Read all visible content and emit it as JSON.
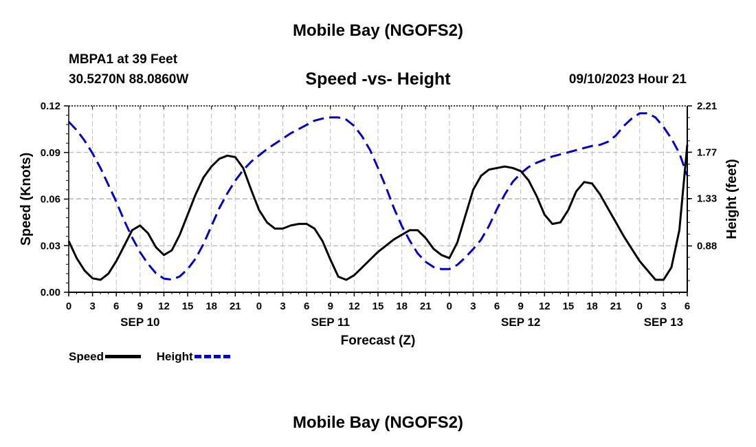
{
  "header": {
    "title": "Mobile Bay (NGOFS2)",
    "station": "MBPA1 at 39 Feet",
    "coordinates": "30.5270N  88.0860W",
    "subtitle": "Speed -vs- Height",
    "datetime": "09/10/2023 Hour 21"
  },
  "footer": {
    "title": "Mobile Bay (NGOFS2)"
  },
  "legend": {
    "speed_label": "Speed",
    "height_label": "Height"
  },
  "chart_data": {
    "type": "line",
    "title": "Speed -vs- Height",
    "xlabel": "Forecast (Z)",
    "ylabel": "Speed (Knots)",
    "y2label": "Height (feet)",
    "x_unit": "hours",
    "x_tick_labels": [
      "0",
      "3",
      "6",
      "9",
      "12",
      "15",
      "18",
      "21",
      "0",
      "3",
      "6",
      "9",
      "12",
      "15",
      "18",
      "21",
      "0",
      "3",
      "6",
      "9",
      "12",
      "15",
      "18",
      "21",
      "0",
      "3",
      "6"
    ],
    "date_labels": [
      {
        "label": "SEP 10",
        "at_tick": 3
      },
      {
        "label": "SEP 11",
        "at_tick": 11
      },
      {
        "label": "SEP 12",
        "at_tick": 19
      },
      {
        "label": "SEP 13",
        "at_tick": 25
      }
    ],
    "xlim": [
      0,
      78
    ],
    "ylim": [
      0,
      0.12
    ],
    "yticks": [
      "0.00",
      "0.03",
      "0.06",
      "0.09",
      "0.12"
    ],
    "y2ticks": [
      "0.88",
      "1.33",
      "1.77",
      "2.21"
    ],
    "y2lim": [
      0.44,
      2.21
    ],
    "grid": true,
    "legend_position": "bottom-left",
    "series": [
      {
        "name": "Speed",
        "axis": "left",
        "color": "#000000",
        "style": "solid",
        "x": [
          0,
          1,
          2,
          3,
          4,
          5,
          6,
          7,
          8,
          9,
          10,
          11,
          12,
          13,
          14,
          15,
          16,
          17,
          18,
          19,
          20,
          21,
          22,
          23,
          24,
          25,
          26,
          27,
          28,
          29,
          30,
          31,
          32,
          33,
          34,
          35,
          36,
          37,
          38,
          39,
          40,
          41,
          42,
          43,
          44,
          45,
          46,
          47,
          48,
          49,
          50,
          51,
          52,
          53,
          54,
          55,
          56,
          57,
          58,
          59,
          60,
          61,
          62,
          63,
          64,
          65,
          66,
          67,
          68,
          69,
          70,
          71,
          72,
          73,
          74,
          75,
          76,
          77,
          78
        ],
        "y": [
          0.033,
          0.022,
          0.014,
          0.009,
          0.008,
          0.012,
          0.02,
          0.03,
          0.04,
          0.043,
          0.038,
          0.029,
          0.024,
          0.027,
          0.037,
          0.05,
          0.063,
          0.074,
          0.081,
          0.086,
          0.088,
          0.087,
          0.08,
          0.066,
          0.053,
          0.045,
          0.041,
          0.041,
          0.043,
          0.044,
          0.044,
          0.041,
          0.033,
          0.021,
          0.01,
          0.008,
          0.011,
          0.016,
          0.021,
          0.026,
          0.03,
          0.034,
          0.037,
          0.04,
          0.04,
          0.035,
          0.028,
          0.024,
          0.022,
          0.032,
          0.049,
          0.066,
          0.075,
          0.079,
          0.08,
          0.081,
          0.08,
          0.078,
          0.072,
          0.062,
          0.05,
          0.044,
          0.045,
          0.053,
          0.065,
          0.071,
          0.07,
          0.063,
          0.054,
          0.045,
          0.036,
          0.028,
          0.02,
          0.014,
          0.008,
          0.008,
          0.016,
          0.04,
          0.095
        ]
      },
      {
        "name": "Height",
        "axis": "right",
        "color": "#0000cc",
        "style": "dashed",
        "x": [
          0,
          1,
          2,
          3,
          4,
          5,
          6,
          7,
          8,
          9,
          10,
          11,
          12,
          13,
          14,
          15,
          16,
          17,
          18,
          19,
          20,
          21,
          22,
          23,
          24,
          25,
          26,
          27,
          28,
          29,
          30,
          31,
          32,
          33,
          34,
          35,
          36,
          37,
          38,
          39,
          40,
          41,
          42,
          43,
          44,
          45,
          46,
          47,
          48,
          49,
          50,
          51,
          52,
          53,
          54,
          55,
          56,
          57,
          58,
          59,
          60,
          61,
          62,
          63,
          64,
          65,
          66,
          67,
          68,
          69,
          70,
          71,
          72,
          73,
          74,
          75,
          76,
          77,
          78
        ],
        "y": [
          2.06,
          1.98,
          1.88,
          1.76,
          1.62,
          1.46,
          1.3,
          1.12,
          0.96,
          0.82,
          0.71,
          0.62,
          0.57,
          0.56,
          0.59,
          0.66,
          0.76,
          0.9,
          1.07,
          1.24,
          1.38,
          1.5,
          1.6,
          1.68,
          1.74,
          1.8,
          1.85,
          1.9,
          1.95,
          1.99,
          2.03,
          2.07,
          2.09,
          2.1,
          2.1,
          2.08,
          2.02,
          1.92,
          1.79,
          1.62,
          1.44,
          1.24,
          1.07,
          0.93,
          0.81,
          0.73,
          0.68,
          0.66,
          0.66,
          0.7,
          0.77,
          0.85,
          0.94,
          1.07,
          1.23,
          1.37,
          1.49,
          1.57,
          1.63,
          1.67,
          1.7,
          1.73,
          1.75,
          1.77,
          1.79,
          1.81,
          1.83,
          1.84,
          1.87,
          1.93,
          2.02,
          2.09,
          2.14,
          2.14,
          2.1,
          2.01,
          1.9,
          1.76,
          1.55
        ]
      }
    ]
  }
}
